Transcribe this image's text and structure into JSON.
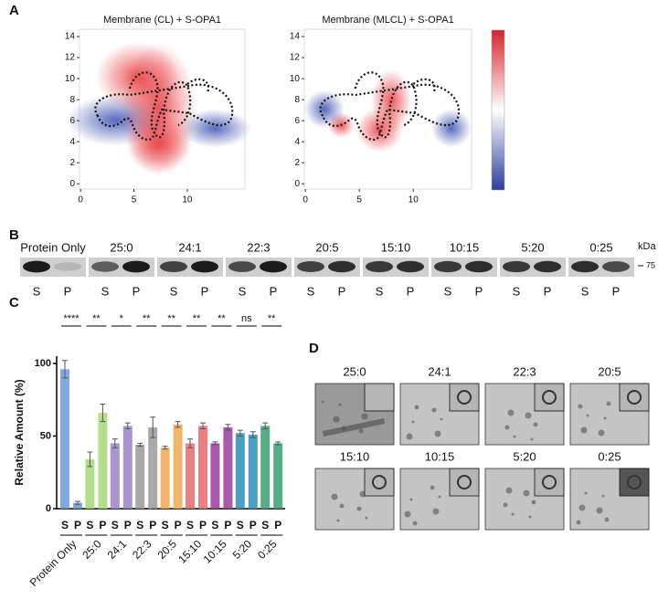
{
  "panel_labels": [
    "A",
    "B",
    "C",
    "D"
  ],
  "chart_data": [
    {
      "type": "heatmap",
      "title": "Membrane (CL) + S-OPA1",
      "xlim": [
        -0.1,
        15.4
      ],
      "ylim": [
        -0.5,
        14.7
      ],
      "xticks": [
        0,
        5,
        10
      ],
      "yticks": [
        0,
        2,
        4,
        6,
        8,
        10,
        12,
        14
      ]
    },
    {
      "type": "heatmap",
      "title": "Membrane (MLCL) + S-OPA1",
      "xlim": [
        -0.1,
        15.4
      ],
      "ylim": [
        -0.5,
        14.7
      ],
      "xticks": [
        0,
        5,
        10
      ],
      "yticks": [
        0,
        2,
        4,
        6,
        8,
        10,
        12,
        14
      ]
    },
    {
      "type": "bar",
      "ylabel": "Relative Amount (%)",
      "categories": [
        "Protein Only",
        "25:0",
        "24:1",
        "22:3",
        "20:5",
        "15:10",
        "10:15",
        "5:20",
        "0:25"
      ],
      "colors": [
        "#6a9bd8",
        "#a8d878",
        "#9b82c8",
        "#9a9a9a",
        "#f0a850",
        "#e86a6a",
        "#9b3ba0",
        "#2a8fb8",
        "#3aa070"
      ],
      "series": [
        {
          "name": "S",
          "values": [
            96,
            34,
            45,
            44,
            42,
            45,
            45,
            52,
            57
          ],
          "errors": [
            6,
            5,
            3,
            1,
            1,
            3,
            1,
            2,
            2
          ]
        },
        {
          "name": "P",
          "values": [
            4,
            66,
            57,
            56,
            58,
            57,
            56,
            51,
            45
          ],
          "errors": [
            1,
            6,
            2,
            7,
            2,
            2,
            2,
            2,
            1
          ]
        }
      ],
      "significance": [
        "****",
        "**",
        "*",
        "**",
        "**",
        "**",
        "**",
        "ns",
        "**"
      ],
      "ylim": [
        0,
        105
      ],
      "yticks": [
        0,
        50,
        100
      ]
    }
  ],
  "blot": {
    "lanes": [
      "Protein Only",
      "25:0",
      "24:1",
      "22:3",
      "20:5",
      "15:10",
      "10:15",
      "5:20",
      "0:25"
    ],
    "fractions": [
      "S",
      "P"
    ],
    "unit": "kDa",
    "marker": "75"
  },
  "micrographs": {
    "labels": [
      "25:0",
      "24:1",
      "22:3",
      "20:5",
      "15:10",
      "10:15",
      "5:20",
      "0:25"
    ]
  }
}
